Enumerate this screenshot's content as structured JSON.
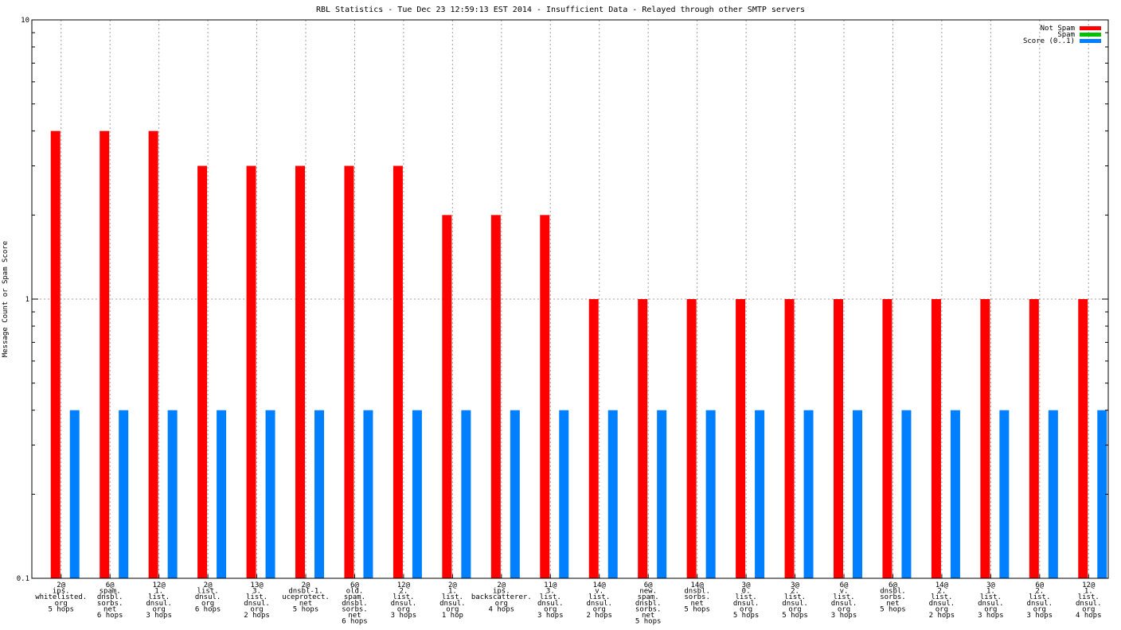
{
  "chart_data": {
    "type": "bar",
    "title": "RBL Statistics - Tue Dec 23 12:59:13 EST 2014 - Insufficient Data - Relayed through other SMTP servers",
    "xlabel": "",
    "ylabel": "Message Count or Spam Score",
    "yscale": "log",
    "ylim": [
      0.1,
      10
    ],
    "yticks": [
      "0.1",
      "1",
      "10"
    ],
    "grid": true,
    "legend_position": "top-right",
    "categories": [
      [
        "2@",
        "ips.",
        "whitelisted.",
        "org",
        "5 hops"
      ],
      [
        "6@",
        "spam.",
        "dnsbl.",
        "sorbs.",
        "net",
        "6 hops"
      ],
      [
        "12@",
        "1.",
        "list.",
        "dnsul.",
        "org",
        "3 hops"
      ],
      [
        "2@",
        "list.",
        "dnsul.",
        "org",
        "6 hops"
      ],
      [
        "13@",
        "3.",
        "list.",
        "dnsul.",
        "org",
        "2 hops"
      ],
      [
        "2@",
        "dnsbl-1.",
        "uceprotect.",
        "net",
        "5 hops"
      ],
      [
        "6@",
        "old.",
        "spam.",
        "dnsbl.",
        "sorbs.",
        "net",
        "6 hops"
      ],
      [
        "12@",
        "2.",
        "list.",
        "dnsul.",
        "org",
        "3 hops"
      ],
      [
        "2@",
        "1.",
        "list.",
        "dnsul.",
        "org",
        "1 hop"
      ],
      [
        "2@",
        "ips.",
        "backscatterer.",
        "org",
        "4 hops"
      ],
      [
        "11@",
        "3.",
        "list.",
        "dnsul.",
        "org",
        "3 hops"
      ],
      [
        "14@",
        "v.",
        "list.",
        "dnsul.",
        "org",
        "2 hops"
      ],
      [
        "6@",
        "new.",
        "spam.",
        "dnsbl.",
        "sorbs.",
        "net",
        "5 hops"
      ],
      [
        "14@",
        "dnsbl.",
        "sorbs.",
        "net",
        "5 hops"
      ],
      [
        "3@",
        "0.",
        "list.",
        "dnsul.",
        "org",
        "5 hops"
      ],
      [
        "3@",
        "2.",
        "list.",
        "dnsul.",
        "org",
        "5 hops"
      ],
      [
        "6@",
        "v.",
        "list.",
        "dnsul.",
        "org",
        "3 hops"
      ],
      [
        "6@",
        "dnsbl.",
        "sorbs.",
        "net",
        "5 hops"
      ],
      [
        "14@",
        "2.",
        "list.",
        "dnsul.",
        "org",
        "2 hops"
      ],
      [
        "3@",
        "1.",
        "list.",
        "dnsul.",
        "org",
        "3 hops"
      ],
      [
        "6@",
        "2.",
        "list.",
        "dnsul.",
        "org",
        "3 hops"
      ],
      [
        "12@",
        "1.",
        "list.",
        "dnsul.",
        "org",
        "4 hops"
      ]
    ],
    "series": [
      {
        "name": "Not Spam",
        "color": "#ff0000",
        "values": [
          4,
          4,
          4,
          3,
          3,
          3,
          3,
          3,
          2,
          2,
          2,
          1,
          1,
          1,
          1,
          1,
          1,
          1,
          1,
          1,
          1,
          1
        ]
      },
      {
        "name": "Spam",
        "color": "#00c000",
        "values": [
          0,
          0,
          0,
          0,
          0,
          0,
          0,
          0,
          0,
          0,
          0,
          0,
          0,
          0,
          0,
          0,
          0,
          0,
          0,
          0,
          0,
          0
        ]
      },
      {
        "name": "Score (0..1)",
        "color": "#0080ff",
        "values": [
          0.4,
          0.4,
          0.4,
          0.4,
          0.4,
          0.4,
          0.4,
          0.4,
          0.4,
          0.4,
          0.4,
          0.4,
          0.4,
          0.4,
          0.4,
          0.4,
          0.4,
          0.4,
          0.4,
          0.4,
          0.4,
          0.4
        ]
      }
    ]
  }
}
